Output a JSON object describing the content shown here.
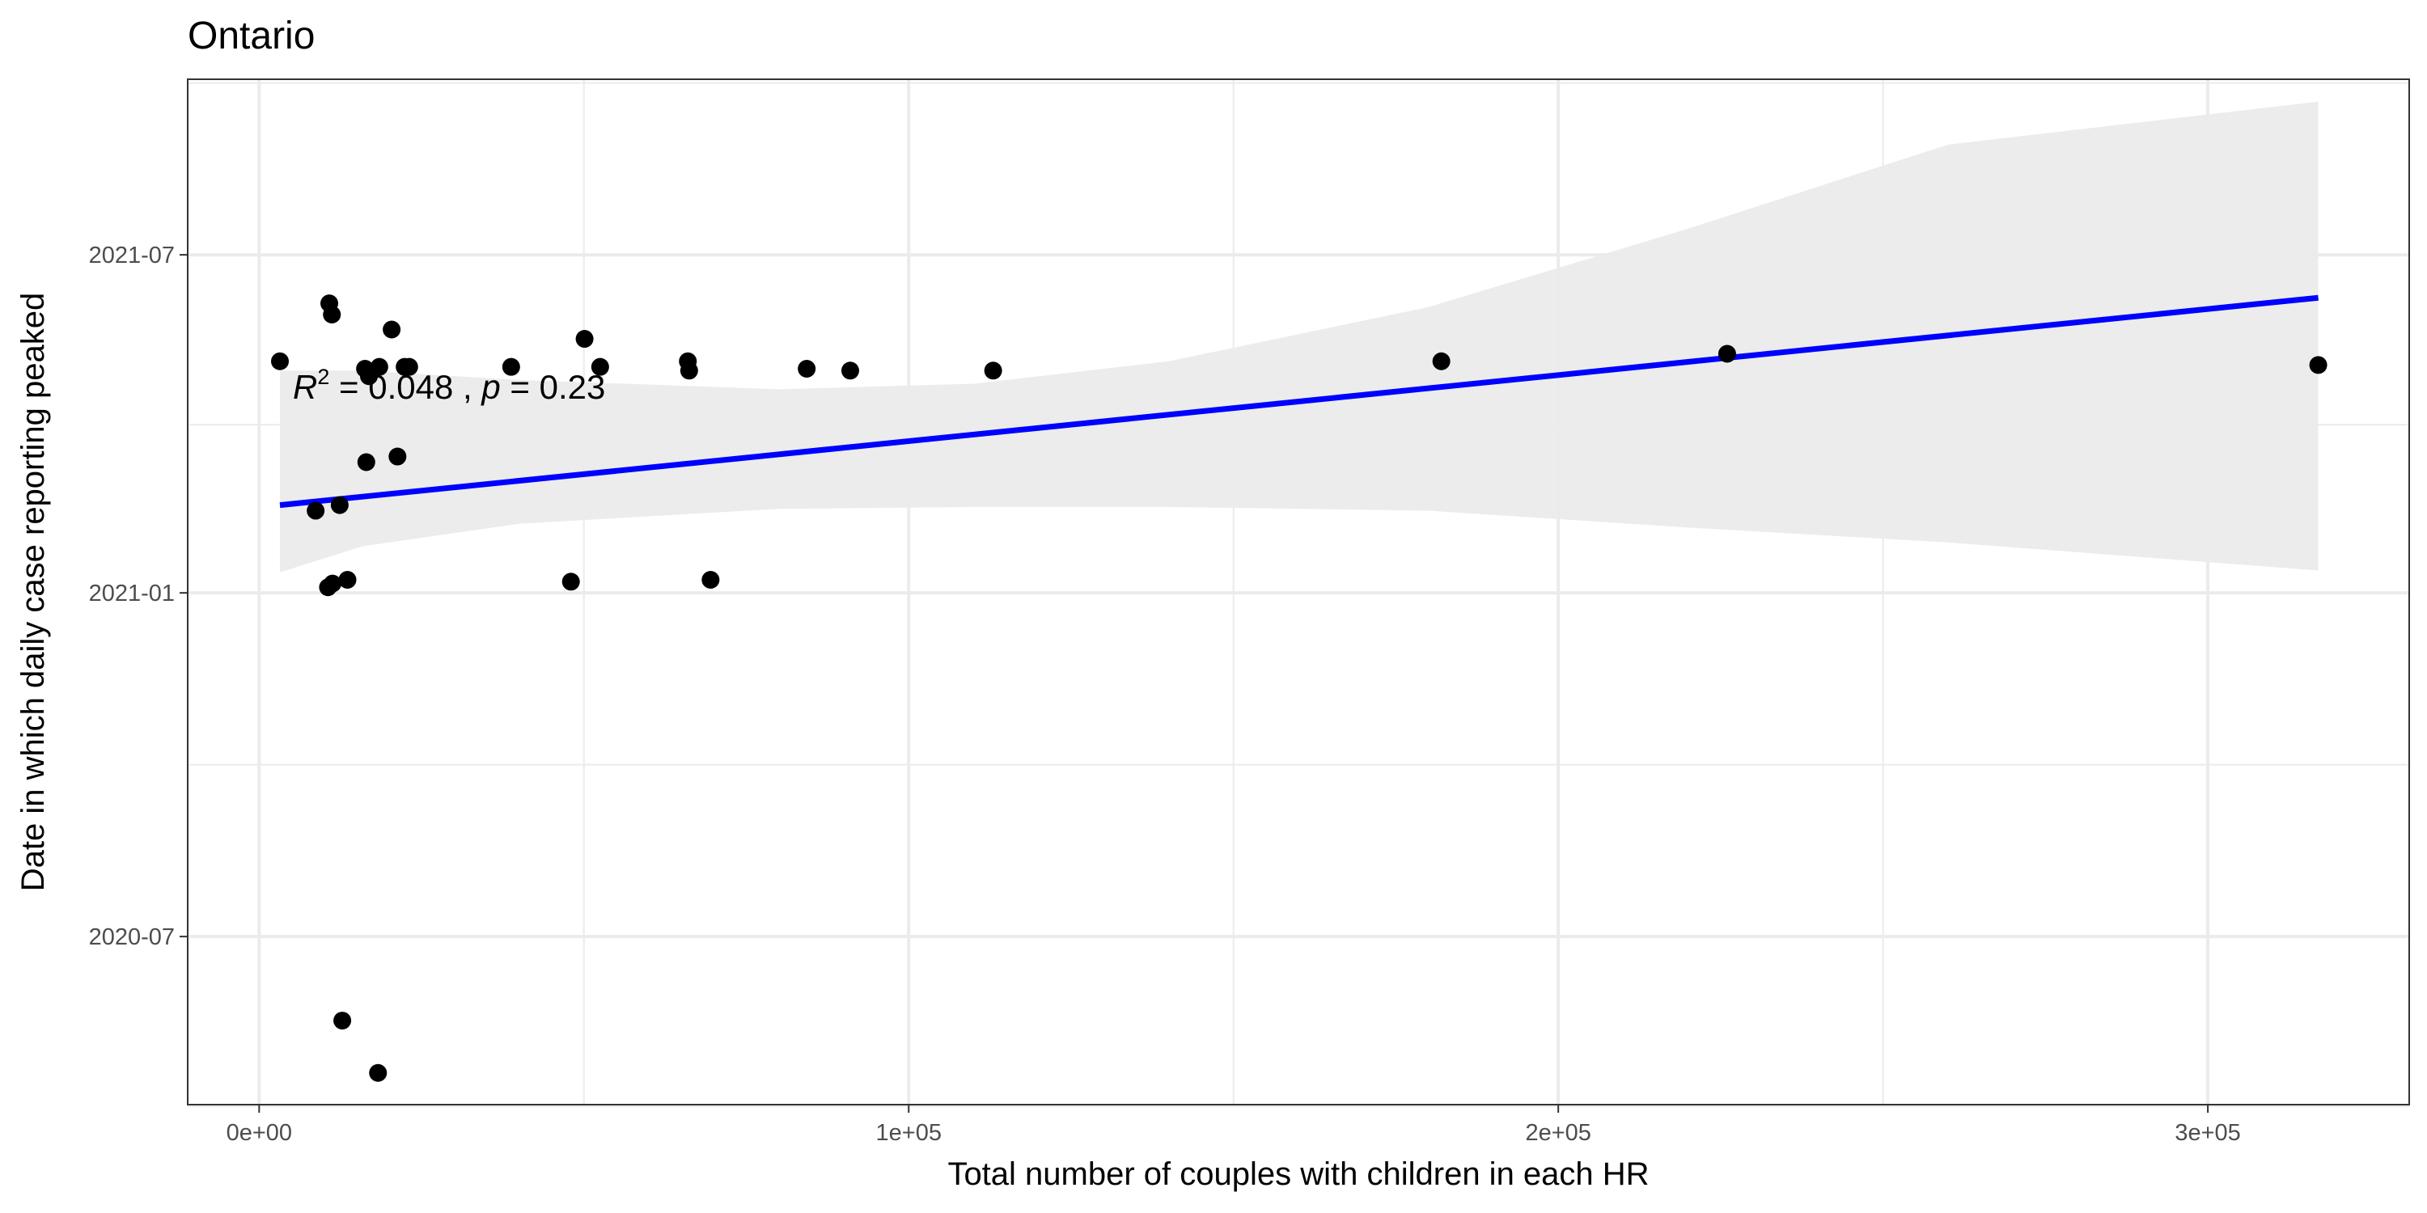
{
  "chart_data": {
    "type": "scatter",
    "title": "Ontario",
    "xlabel": "Total number of couples with children in each HR",
    "ylabel": "Date in which daily case reporting peaked",
    "xlim": [
      -11000,
      331000
    ],
    "ylim": [
      "2020-04-02",
      "2021-10-03"
    ],
    "x_ticks": [
      {
        "value": 0,
        "label": "0e+00"
      },
      {
        "value": 100000,
        "label": "1e+05"
      },
      {
        "value": 200000,
        "label": "2e+05"
      },
      {
        "value": 300000,
        "label": "3e+05"
      }
    ],
    "x_minor_ticks": [
      50000,
      150000,
      250000
    ],
    "y_ticks": [
      {
        "value": "2020-07-01",
        "label": "2020-07"
      },
      {
        "value": "2021-01-01",
        "label": "2021-01"
      },
      {
        "value": "2021-07-01",
        "label": "2021-07"
      }
    ],
    "y_minor_ticks": [
      "2020-04-01",
      "2020-10-01",
      "2021-04-01",
      "2021-10-01"
    ],
    "grid": true,
    "points": [
      {
        "x": 3200,
        "y": "2021-05-05"
      },
      {
        "x": 8700,
        "y": "2021-02-14"
      },
      {
        "x": 10800,
        "y": "2021-06-05"
      },
      {
        "x": 11200,
        "y": "2021-05-30"
      },
      {
        "x": 10600,
        "y": "2021-01-04"
      },
      {
        "x": 11300,
        "y": "2021-01-06"
      },
      {
        "x": 12400,
        "y": "2021-02-17"
      },
      {
        "x": 12800,
        "y": "2020-05-17"
      },
      {
        "x": 13600,
        "y": "2021-01-08"
      },
      {
        "x": 16300,
        "y": "2021-05-01"
      },
      {
        "x": 16500,
        "y": "2021-03-12"
      },
      {
        "x": 16900,
        "y": "2021-04-27"
      },
      {
        "x": 18300,
        "y": "2020-04-19"
      },
      {
        "x": 18500,
        "y": "2021-05-02"
      },
      {
        "x": 20400,
        "y": "2021-05-22"
      },
      {
        "x": 21300,
        "y": "2021-03-15"
      },
      {
        "x": 22400,
        "y": "2021-05-02"
      },
      {
        "x": 23100,
        "y": "2021-05-02"
      },
      {
        "x": 38800,
        "y": "2021-05-02"
      },
      {
        "x": 48000,
        "y": "2021-01-07"
      },
      {
        "x": 50100,
        "y": "2021-05-17"
      },
      {
        "x": 52500,
        "y": "2021-05-02"
      },
      {
        "x": 66000,
        "y": "2021-05-05"
      },
      {
        "x": 66200,
        "y": "2021-04-30"
      },
      {
        "x": 69500,
        "y": "2021-01-08"
      },
      {
        "x": 84300,
        "y": "2021-05-01"
      },
      {
        "x": 91000,
        "y": "2021-04-30"
      },
      {
        "x": 113000,
        "y": "2021-04-30"
      },
      {
        "x": 182000,
        "y": "2021-05-05"
      },
      {
        "x": 226000,
        "y": "2021-05-09"
      },
      {
        "x": 317000,
        "y": "2021-05-03"
      }
    ],
    "fit": {
      "x": [
        3200,
        317000
      ],
      "y": [
        "2021-02-17",
        "2021-06-08"
      ],
      "band_x": [
        3200,
        16000,
        40000,
        80000,
        110000,
        140000,
        180000,
        220000,
        260000,
        317000
      ],
      "band_upper": [
        "2021-04-30",
        "2021-04-30",
        "2021-04-25",
        "2021-04-20",
        "2021-04-23",
        "2021-05-05",
        "2021-06-03",
        "2021-07-15",
        "2021-08-29",
        "2021-09-21"
      ],
      "band_lower": [
        "2021-01-12",
        "2021-01-26",
        "2021-02-07",
        "2021-02-15",
        "2021-02-16",
        "2021-02-16",
        "2021-02-14",
        "2021-02-05",
        "2021-01-28",
        "2021-01-13"
      ]
    },
    "annotation": {
      "r2_symbol": "R",
      "r2_exp": "2",
      "r2_value": " = 0.048 , ",
      "p_symbol": "p",
      "p_value": " = 0.23"
    },
    "colors": {
      "fit_line": "#0000ff",
      "band": "#ebebeb",
      "point": "#000000",
      "grid": "#ebebeb",
      "panel_border": "#333333"
    }
  }
}
